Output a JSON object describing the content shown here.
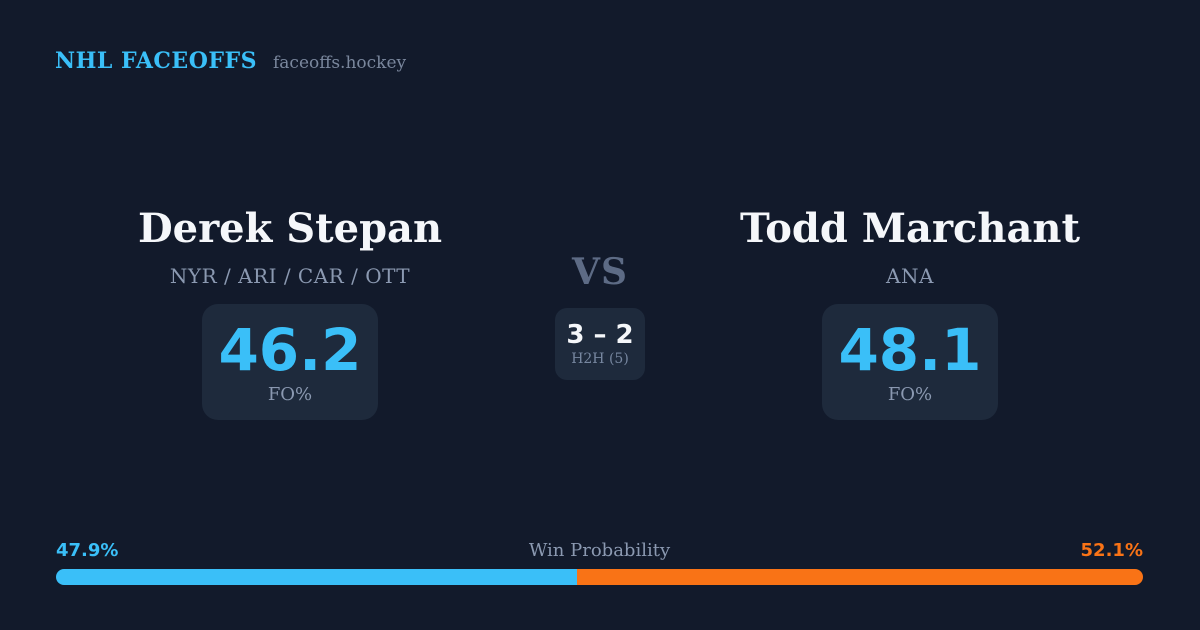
{
  "brand": {
    "title": "NHL FACEOFFS",
    "domain": "faceoffs.hockey"
  },
  "matchup": {
    "vs_label": "VS",
    "h2h": {
      "score": "3 – 2",
      "label": "H2H (5)"
    },
    "players": [
      {
        "name": "Derek Stepan",
        "teams": "NYR / ARI / CAR / OTT",
        "fo_pct": "46.2",
        "fo_label": "FO%"
      },
      {
        "name": "Todd Marchant",
        "teams": "ANA",
        "fo_pct": "48.1",
        "fo_label": "FO%"
      }
    ]
  },
  "win_probability": {
    "title": "Win Probability",
    "left_label": "47.9%",
    "right_label": "52.1%",
    "left_value": 47.9,
    "right_value": 52.1
  },
  "colors": {
    "background": "#121a2b",
    "card": "#1e2a3c",
    "accent_blue": "#3abff8",
    "accent_orange": "#f97316",
    "name_color": "#f5f7fa",
    "muted": "#8b99b1",
    "muted_dark": "#5d6b85",
    "domain_color": "#7a879d",
    "h2h_label": "#7787a0"
  },
  "chart_data": [
    {
      "type": "bar",
      "title": "Win Probability",
      "categories": [
        "Derek Stepan",
        "Todd Marchant"
      ],
      "values": [
        47.9,
        52.1
      ],
      "colors": [
        "#3abff8",
        "#f97316"
      ],
      "layout": "single horizontal stacked bar, blue segment left / orange segment right, rounded ends",
      "xlim": [
        0,
        100
      ]
    },
    {
      "type": "table",
      "title": "Faceoff Percentage (FO%)",
      "categories": [
        "Derek Stepan",
        "Todd Marchant"
      ],
      "values": [
        46.2,
        48.1
      ]
    },
    {
      "type": "table",
      "title": "Head-to-head record over 5 games (H2H (5))",
      "categories": [
        "Derek Stepan",
        "Todd Marchant"
      ],
      "values": [
        3,
        2
      ]
    }
  ]
}
